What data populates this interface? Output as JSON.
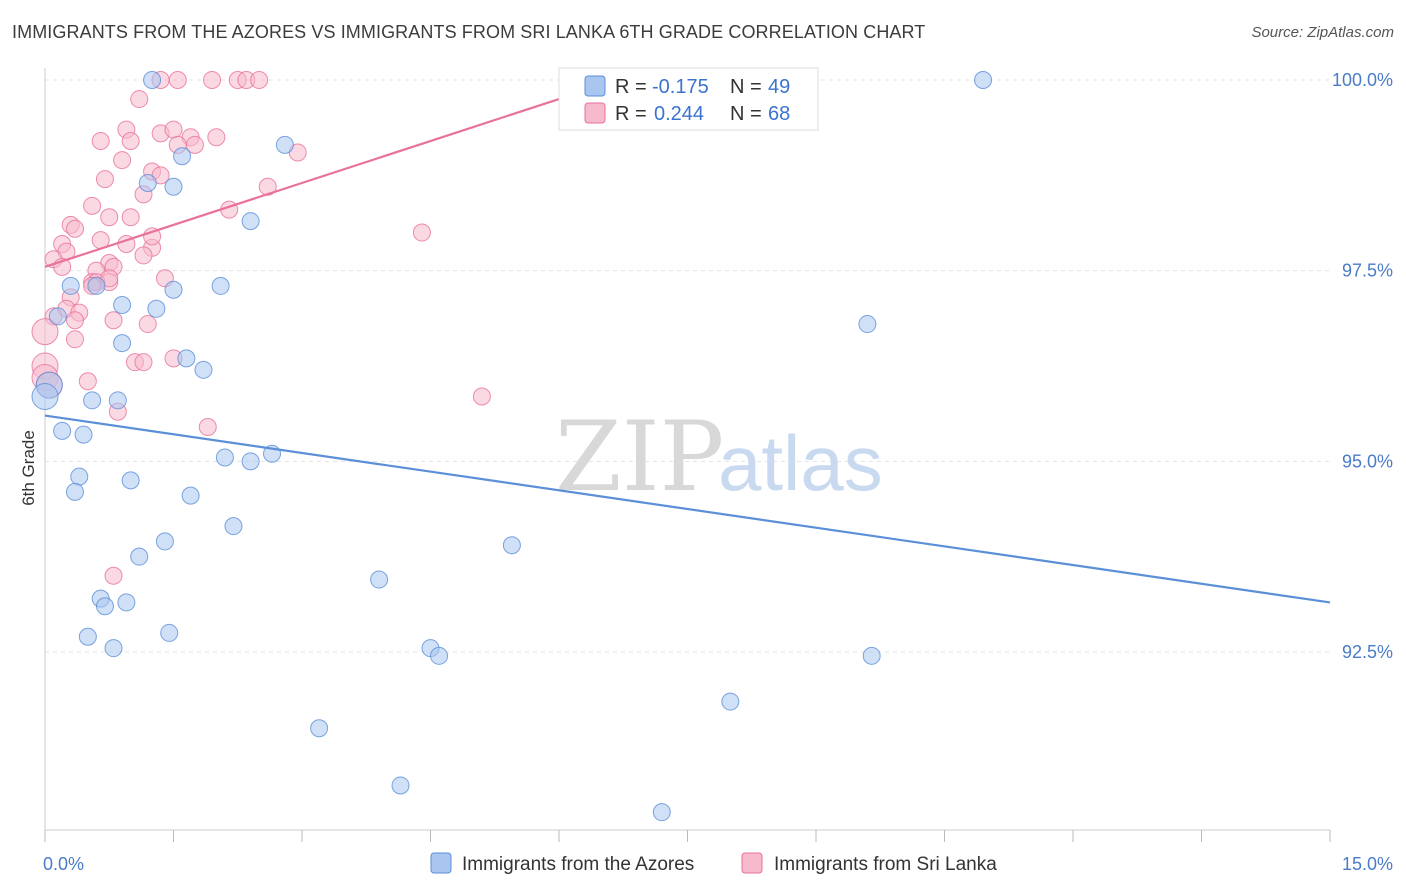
{
  "title": "IMMIGRANTS FROM THE AZORES VS IMMIGRANTS FROM SRI LANKA 6TH GRADE CORRELATION CHART",
  "source": "Source: ZipAtlas.com",
  "watermark": {
    "zip": "ZIP",
    "atlas": "atlas"
  },
  "colors": {
    "blue": "#5b8fd8",
    "blue_fill": "#a9c6f0",
    "pink": "#e8729a",
    "pink_fill": "#f7b9cc",
    "axis_label": "#4a7cc7"
  },
  "legend": {
    "r_label": "R =",
    "n_label": "N =",
    "blue": {
      "r": "-0.175",
      "n": "49"
    },
    "pink": {
      "r": "0.244",
      "n": "68"
    }
  },
  "chart_data": {
    "type": "scatter",
    "xlabel": "",
    "ylabel": "6th Grade",
    "xlim": [
      0,
      15
    ],
    "ylim": [
      90.0,
      100.3
    ],
    "x_ticks_labels": [
      "0.0%",
      "15.0%"
    ],
    "y_ticks": [
      92.5,
      95.0,
      97.5,
      100.0
    ],
    "y_tick_labels": [
      "92.5%",
      "95.0%",
      "97.5%",
      "100.0%"
    ],
    "grid": "horizontal dashed",
    "series": [
      {
        "name": "Immigrants from the Azores",
        "color": "blue",
        "trend": [
          [
            0.0,
            95.6
          ],
          [
            15.0,
            93.15
          ]
        ],
        "points": [
          [
            1.25,
            100
          ],
          [
            10.95,
            100
          ],
          [
            1.6,
            99.0
          ],
          [
            2.8,
            99.15
          ],
          [
            1.5,
            98.6
          ],
          [
            1.2,
            98.65
          ],
          [
            2.4,
            98.15
          ],
          [
            0.6,
            97.3
          ],
          [
            0.3,
            97.3
          ],
          [
            1.5,
            97.25
          ],
          [
            2.05,
            97.3
          ],
          [
            0.9,
            97.05
          ],
          [
            1.3,
            97.0
          ],
          [
            0.15,
            96.9
          ],
          [
            9.6,
            96.8
          ],
          [
            0.9,
            96.55
          ],
          [
            1.65,
            96.35
          ],
          [
            1.85,
            96.2
          ],
          [
            0.05,
            96.0
          ],
          [
            0.0,
            95.85
          ],
          [
            0.55,
            95.8
          ],
          [
            0.85,
            95.8
          ],
          [
            0.2,
            95.4
          ],
          [
            0.45,
            95.35
          ],
          [
            2.65,
            95.1
          ],
          [
            2.1,
            95.05
          ],
          [
            2.4,
            95.0
          ],
          [
            0.4,
            94.8
          ],
          [
            1.0,
            94.75
          ],
          [
            0.35,
            94.6
          ],
          [
            1.7,
            94.55
          ],
          [
            2.2,
            94.15
          ],
          [
            1.4,
            93.95
          ],
          [
            5.45,
            93.9
          ],
          [
            1.1,
            93.75
          ],
          [
            3.9,
            93.45
          ],
          [
            0.65,
            93.2
          ],
          [
            0.95,
            93.15
          ],
          [
            0.7,
            93.1
          ],
          [
            1.45,
            92.75
          ],
          [
            0.5,
            92.7
          ],
          [
            0.8,
            92.55
          ],
          [
            4.5,
            92.55
          ],
          [
            4.6,
            92.45
          ],
          [
            9.65,
            92.45
          ],
          [
            8.0,
            91.85
          ],
          [
            3.2,
            91.5
          ],
          [
            4.15,
            90.75
          ],
          [
            7.2,
            90.4
          ]
        ]
      },
      {
        "name": "Immigrants from Sri Lanka",
        "color": "pink",
        "trend": [
          [
            0.0,
            97.55
          ],
          [
            6.0,
            99.75
          ]
        ],
        "points": [
          [
            1.35,
            100
          ],
          [
            1.55,
            100
          ],
          [
            1.95,
            100
          ],
          [
            2.25,
            100
          ],
          [
            2.35,
            100
          ],
          [
            2.5,
            100
          ],
          [
            1.1,
            99.75
          ],
          [
            0.95,
            99.35
          ],
          [
            1.35,
            99.3
          ],
          [
            1.5,
            99.35
          ],
          [
            0.65,
            99.2
          ],
          [
            1.0,
            99.2
          ],
          [
            1.7,
            99.25
          ],
          [
            2.0,
            99.25
          ],
          [
            1.55,
            99.15
          ],
          [
            1.75,
            99.15
          ],
          [
            2.95,
            99.05
          ],
          [
            0.9,
            98.95
          ],
          [
            1.25,
            98.8
          ],
          [
            1.35,
            98.75
          ],
          [
            0.7,
            98.7
          ],
          [
            2.6,
            98.6
          ],
          [
            1.15,
            98.5
          ],
          [
            0.55,
            98.35
          ],
          [
            2.15,
            98.3
          ],
          [
            0.75,
            98.2
          ],
          [
            1.0,
            98.2
          ],
          [
            0.3,
            98.1
          ],
          [
            0.35,
            98.05
          ],
          [
            4.4,
            98.0
          ],
          [
            0.65,
            97.9
          ],
          [
            0.95,
            97.85
          ],
          [
            1.25,
            97.8
          ],
          [
            0.2,
            97.85
          ],
          [
            0.25,
            97.75
          ],
          [
            1.15,
            97.7
          ],
          [
            0.1,
            97.65
          ],
          [
            0.75,
            97.6
          ],
          [
            0.8,
            97.55
          ],
          [
            0.2,
            97.55
          ],
          [
            0.6,
            97.5
          ],
          [
            1.4,
            97.4
          ],
          [
            0.55,
            97.35
          ],
          [
            0.75,
            97.35
          ],
          [
            0.6,
            97.35
          ],
          [
            0.55,
            97.3
          ],
          [
            0.3,
            97.15
          ],
          [
            0.25,
            97.0
          ],
          [
            0.4,
            96.95
          ],
          [
            0.1,
            96.9
          ],
          [
            0.35,
            96.85
          ],
          [
            0.8,
            96.85
          ],
          [
            1.2,
            96.8
          ],
          [
            0.0,
            96.7
          ],
          [
            0.35,
            96.6
          ],
          [
            1.5,
            96.35
          ],
          [
            1.05,
            96.3
          ],
          [
            1.15,
            96.3
          ],
          [
            0.0,
            96.25
          ],
          [
            0.0,
            96.1
          ],
          [
            0.5,
            96.05
          ],
          [
            0.05,
            96.0
          ],
          [
            5.1,
            95.85
          ],
          [
            0.85,
            95.65
          ],
          [
            1.9,
            95.45
          ],
          [
            0.8,
            93.5
          ],
          [
            0.75,
            97.4
          ],
          [
            1.25,
            97.95
          ]
        ]
      }
    ]
  }
}
